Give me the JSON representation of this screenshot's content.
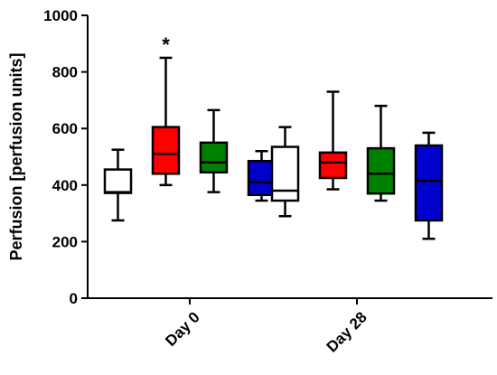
{
  "chart_data": {
    "type": "boxplot",
    "title": "",
    "xlabel": "",
    "ylabel": "Perfusion [perfusion units]",
    "ylim": [
      0,
      1000
    ],
    "yticks": [
      0,
      200,
      400,
      600,
      800,
      1000
    ],
    "grid": false,
    "legend": "none",
    "categories": [
      "Day 0",
      "Day 28"
    ],
    "series_colors": [
      "#ffffff",
      "#ff0000",
      "#008000",
      "#0000cc"
    ],
    "groups": [
      {
        "category": "Day 0",
        "boxes": [
          {
            "min": 275,
            "q1": 372,
            "median": 375,
            "q3": 455,
            "max": 525
          },
          {
            "min": 400,
            "q1": 440,
            "median": 510,
            "q3": 605,
            "max": 850
          },
          {
            "min": 375,
            "q1": 445,
            "median": 480,
            "q3": 550,
            "max": 665
          },
          {
            "min": 345,
            "q1": 365,
            "median": 410,
            "q3": 485,
            "max": 520
          }
        ]
      },
      {
        "category": "Day 28",
        "boxes": [
          {
            "min": 290,
            "q1": 345,
            "median": 380,
            "q3": 535,
            "max": 605
          },
          {
            "min": 385,
            "q1": 425,
            "median": 480,
            "q3": 515,
            "max": 730
          },
          {
            "min": 345,
            "q1": 370,
            "median": 440,
            "q3": 530,
            "max": 680
          },
          {
            "min": 210,
            "q1": 275,
            "median": 415,
            "q3": 540,
            "max": 585
          }
        ]
      }
    ],
    "annotations": [
      {
        "text": "*",
        "category": "Day 0",
        "box": 1,
        "value": 910
      }
    ]
  }
}
